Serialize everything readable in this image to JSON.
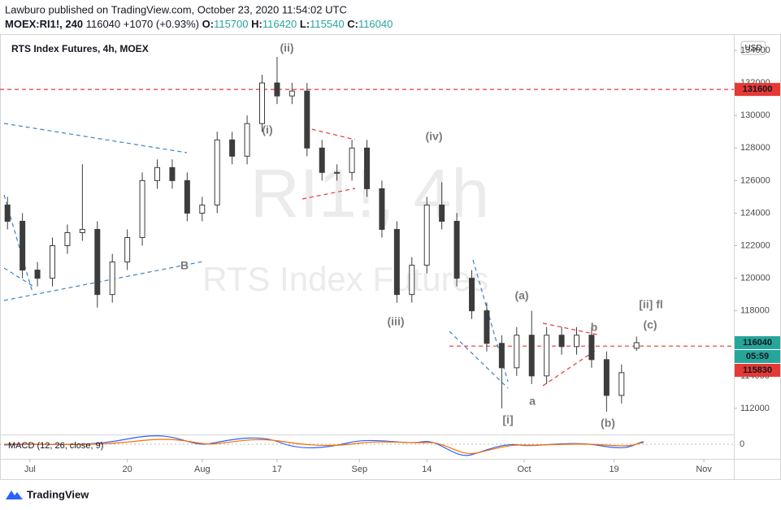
{
  "header": {
    "publisher": "Lawburo published on TradingView.com, October 23, 2020 11:54:02 UTC",
    "symbol": "MOEX:RI1!, 240",
    "change": "+1070 (+0.93%)",
    "o_label": "O:",
    "h_label": "H:",
    "l_label": "L:",
    "c_label": "C:"
  },
  "chart_data": {
    "type": "candlestick",
    "title": "RTS Index Futures, 4h, MOEX",
    "watermark": "RI1!, 4h",
    "watermark_subtitle": "RTS Index Futures",
    "currency": "USD",
    "x": [
      -3,
      -1,
      1,
      3,
      5,
      7,
      9,
      11,
      13,
      15,
      17,
      19,
      21,
      23,
      25,
      27,
      29,
      31,
      33,
      35,
      37,
      39,
      41,
      43,
      45,
      47,
      49,
      51,
      53,
      55,
      57,
      59,
      61,
      63,
      65,
      67,
      69,
      71,
      73,
      75,
      77,
      79,
      81
    ],
    "open": [
      124500,
      123500,
      120500,
      120000,
      122000,
      122800,
      123000,
      119000,
      121000,
      122500,
      126000,
      126800,
      126000,
      124000,
      124500,
      128500,
      127500,
      129500,
      132000,
      131200,
      131500,
      128000,
      126500,
      126500,
      128000,
      125500,
      123000,
      119000,
      120800,
      124500,
      123500,
      120000,
      118000,
      116000,
      114500,
      116500,
      114000,
      116500,
      115800,
      116500,
      115000,
      112800,
      115700
    ],
    "high": [
      125000,
      124000,
      121000,
      122500,
      123300,
      127000,
      123500,
      121500,
      123000,
      126500,
      127300,
      127300,
      126500,
      125000,
      129000,
      129000,
      130000,
      132500,
      133600,
      132000,
      132000,
      128500,
      127000,
      128500,
      128500,
      126000,
      123500,
      121300,
      125000,
      125900,
      124000,
      120500,
      118500,
      116500,
      117000,
      118000,
      117000,
      117000,
      117000,
      117000,
      115500,
      114700,
      116420
    ],
    "low": [
      123000,
      120000,
      119500,
      119500,
      121500,
      122300,
      118200,
      118500,
      120500,
      122000,
      125500,
      125500,
      123500,
      123500,
      124000,
      127000,
      127000,
      129000,
      130700,
      130700,
      127500,
      126000,
      126000,
      126000,
      125000,
      122500,
      118500,
      118500,
      120300,
      123000,
      119500,
      117500,
      115500,
      112000,
      114000,
      113500,
      113500,
      115300,
      115300,
      114500,
      111800,
      112300,
      115540
    ],
    "close": [
      123500,
      120500,
      120000,
      122000,
      122800,
      123000,
      119000,
      121000,
      122500,
      126000,
      126800,
      126000,
      124000,
      124500,
      128500,
      127500,
      129500,
      132000,
      131200,
      131500,
      128000,
      126500,
      126500,
      128000,
      125500,
      123000,
      119000,
      120800,
      124500,
      123500,
      120000,
      118000,
      116000,
      114500,
      116500,
      114000,
      116500,
      115800,
      116500,
      115000,
      112800,
      114200,
      116040
    ],
    "color": "#3c3c3c",
    "xlim": [
      -4,
      94
    ],
    "xticks": [
      {
        "value": 0,
        "label": "Jul"
      },
      {
        "value": 13,
        "label": "20"
      },
      {
        "value": 23,
        "label": "Aug"
      },
      {
        "value": 33,
        "label": "17"
      },
      {
        "value": 44,
        "label": "Sep"
      },
      {
        "value": 53,
        "label": "14"
      },
      {
        "value": 66,
        "label": "Oct"
      },
      {
        "value": 78,
        "label": "19"
      },
      {
        "value": 90,
        "label": "Nov"
      }
    ],
    "ylim": [
      110400,
      135000
    ],
    "yticks": [
      112000,
      114000,
      116000,
      118000,
      120000,
      122000,
      124000,
      126000,
      128000,
      130000,
      132000,
      134000
    ],
    "grid": false,
    "levels": [
      131600,
      115830
    ],
    "level_color": "#e53935",
    "last_price_color": "#26a69a",
    "countdown": "05:59",
    "annotations": [
      "(ii)",
      "(i)",
      "(iv)",
      "(iii)",
      "(a)",
      "b",
      "(c)",
      "[ii] fl",
      "a",
      "[i]",
      "(b)",
      "B"
    ],
    "indicator": {
      "title": "MACD (12, 26, close, 9)",
      "yticks": [
        0
      ]
    }
  },
  "footer": {
    "brand": "TradingView"
  }
}
